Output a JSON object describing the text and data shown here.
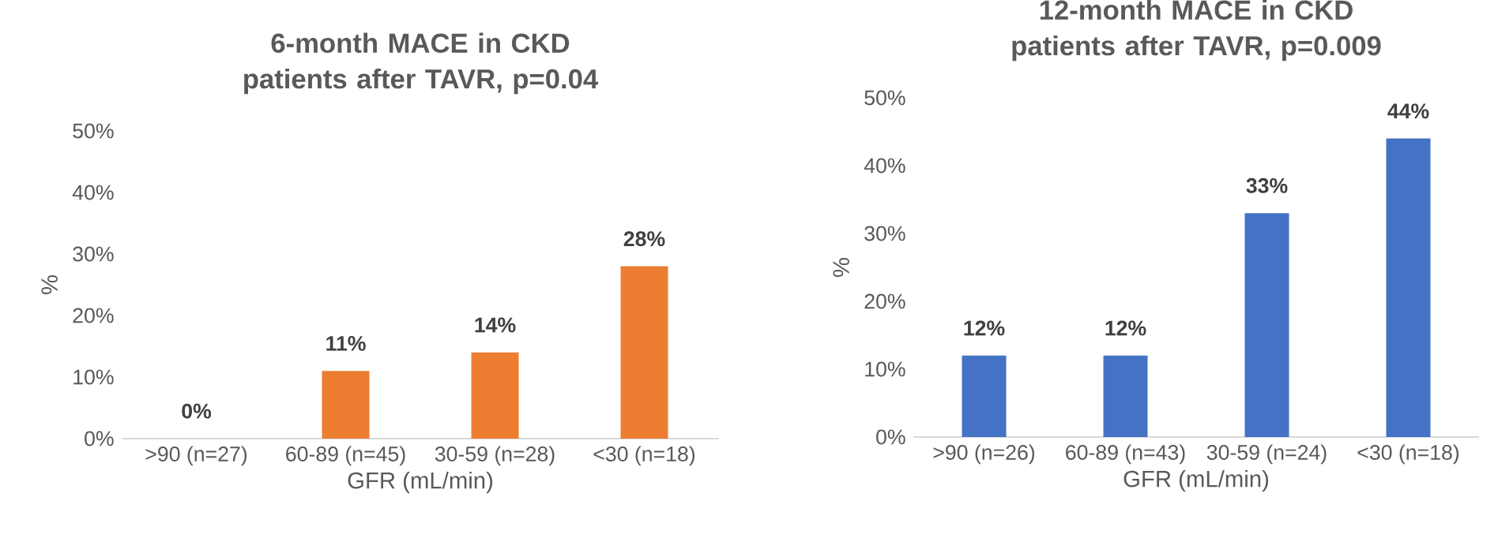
{
  "chart_data": [
    {
      "type": "bar",
      "title": "6-month MACE in CKD patients after TAVR, p=0.04",
      "xlabel": "GFR (mL/min)",
      "ylabel": "%",
      "categories": [
        ">90 (n=27)",
        "60-89 (n=45)",
        "30-59 (n=28)",
        "<30 (n=18)"
      ],
      "values": [
        0,
        11,
        14,
        28
      ],
      "value_labels": [
        "0%",
        "11%",
        "14%",
        "28%"
      ],
      "color": "#ed7d31",
      "ylim": [
        0,
        50
      ],
      "yticks": [
        {
          "value": 0,
          "label": "0%"
        },
        {
          "value": 10,
          "label": "10%"
        },
        {
          "value": 20,
          "label": "20%"
        },
        {
          "value": 30,
          "label": "30%"
        },
        {
          "value": 40,
          "label": "40%"
        },
        {
          "value": 50,
          "label": "50%"
        }
      ]
    },
    {
      "type": "bar",
      "title": "12-month MACE in CKD patients after TAVR, p=0.009",
      "xlabel": "GFR (mL/min)",
      "ylabel": "%",
      "categories": [
        ">90 (n=26)",
        "60-89 (n=43)",
        "30-59 (n=24)",
        "<30 (n=18)"
      ],
      "values": [
        12,
        12,
        33,
        44
      ],
      "value_labels": [
        "12%",
        "12%",
        "33%",
        "44%"
      ],
      "color": "#4472c4",
      "ylim": [
        0,
        50
      ],
      "yticks": [
        {
          "value": 0,
          "label": "0%"
        },
        {
          "value": 10,
          "label": "10%"
        },
        {
          "value": 20,
          "label": "20%"
        },
        {
          "value": 30,
          "label": "30%"
        },
        {
          "value": 40,
          "label": "40%"
        },
        {
          "value": 50,
          "label": "50%"
        }
      ]
    }
  ]
}
